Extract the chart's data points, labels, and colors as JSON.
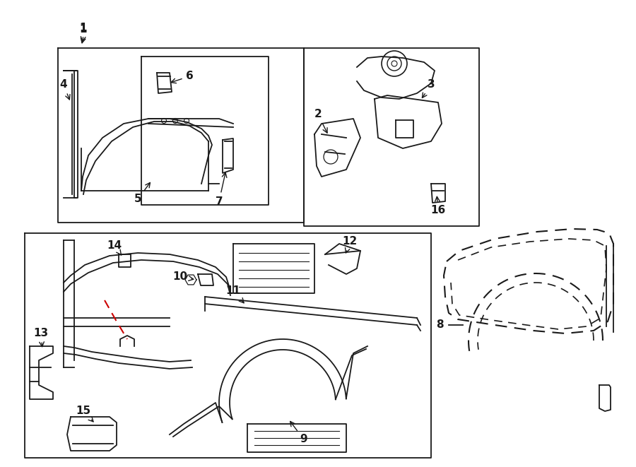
{
  "bg": "#ffffff",
  "lc": "#1a1a1a",
  "rc": "#cc0000",
  "fw": 9.0,
  "fh": 6.61,
  "dpi": 100
}
